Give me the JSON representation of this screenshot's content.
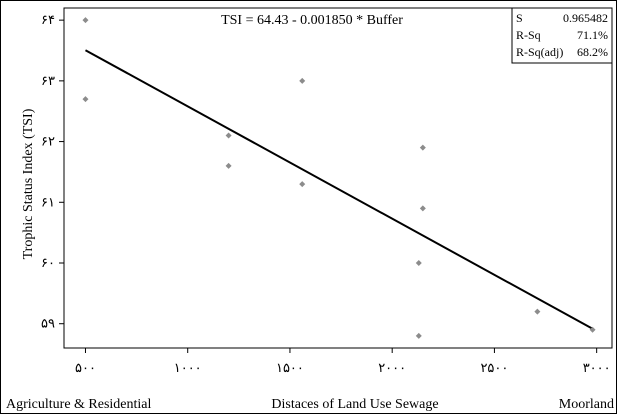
{
  "chart_data": {
    "type": "scatter",
    "title": "TSI =  64.43 - 0.001850 * Buffer",
    "xlabel": "Distaces of Land Use Sewage",
    "ylabel": "Trophic Status Index (TSI)",
    "x_axis_left_text": "Agriculture & Residential",
    "x_axis_right_text": "Moorland",
    "xlim": [
      395,
      3075
    ],
    "ylim": [
      58.6,
      64.2
    ],
    "x_ticks": [
      {
        "value": 500,
        "label": "۵۰۰"
      },
      {
        "value": 1000,
        "label": "۱۰۰۰"
      },
      {
        "value": 1500,
        "label": "۱۵۰۰"
      },
      {
        "value": 2000,
        "label": "۲۰۰۰"
      },
      {
        "value": 2500,
        "label": "۲۵۰۰"
      },
      {
        "value": 3000,
        "label": "۳۰۰۰"
      }
    ],
    "y_ticks": [
      {
        "value": 59,
        "label": "۵۹"
      },
      {
        "value": 60,
        "label": "۶۰"
      },
      {
        "value": 61,
        "label": "۶۱"
      },
      {
        "value": 62,
        "label": "۶۲"
      },
      {
        "value": 63,
        "label": "۶۳"
      },
      {
        "value": 64,
        "label": "۶۴"
      }
    ],
    "points": [
      {
        "x": 500,
        "y": 64.0
      },
      {
        "x": 500,
        "y": 62.7
      },
      {
        "x": 1200,
        "y": 62.1
      },
      {
        "x": 1200,
        "y": 61.6
      },
      {
        "x": 1560,
        "y": 63.0
      },
      {
        "x": 1560,
        "y": 61.3
      },
      {
        "x": 2130,
        "y": 60.0
      },
      {
        "x": 2150,
        "y": 61.9
      },
      {
        "x": 2150,
        "y": 60.9
      },
      {
        "x": 2130,
        "y": 58.8
      },
      {
        "x": 2710,
        "y": 59.2
      },
      {
        "x": 2980,
        "y": 58.9
      }
    ],
    "fit_line": {
      "intercept": 64.43,
      "slope": -0.00185,
      "x_range": [
        500,
        2980
      ]
    },
    "stats": [
      {
        "label": "S",
        "value": "0.965482"
      },
      {
        "label": "R-Sq",
        "value": "71.1%"
      },
      {
        "label": "R-Sq(adj)",
        "value": "68.2%"
      }
    ],
    "grid": false,
    "colors": {
      "points": "#8c8c8c",
      "line": "#000000"
    }
  }
}
